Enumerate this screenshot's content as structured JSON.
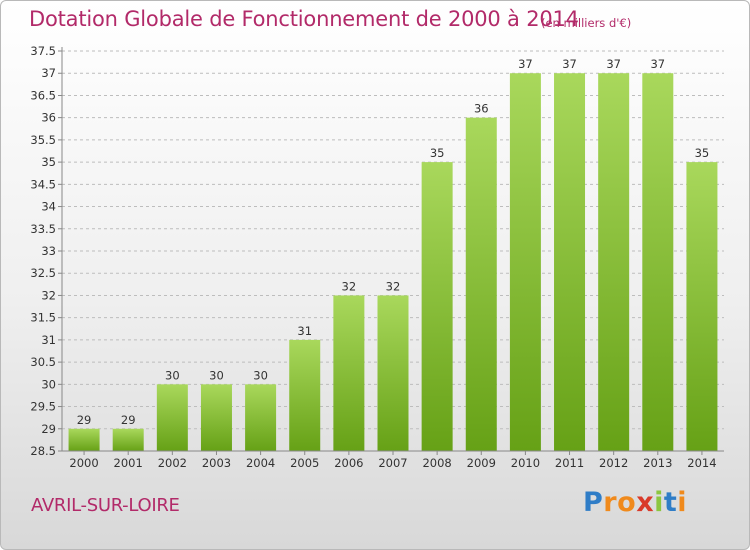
{
  "title": "Dotation Globale de Fonctionnement de 2000 à 2014",
  "subtitle": "(en milliers d'€)",
  "commune": "AVRIL-SUR-LOIRE",
  "logo": {
    "letters": [
      "P",
      "r",
      "o",
      "x",
      "i",
      "t",
      "i"
    ],
    "colors": [
      "#2f7dc7",
      "#f08a1c",
      "#f08a1c",
      "#d93a2a",
      "#8cc63f",
      "#2f7dc7",
      "#f08a1c"
    ]
  },
  "colors": {
    "bar_light": "#a9d85c",
    "bar_dark": "#66a116",
    "grid": "#bdbdbd",
    "axis": "#888888",
    "text": "#333333"
  },
  "chart_data": {
    "type": "bar",
    "categories": [
      "2000",
      "2001",
      "2002",
      "2003",
      "2004",
      "2005",
      "2006",
      "2007",
      "2008",
      "2009",
      "2010",
      "2011",
      "2012",
      "2013",
      "2014"
    ],
    "values": [
      29,
      29,
      30,
      30,
      30,
      31,
      32,
      32,
      35,
      36,
      37,
      37,
      37,
      37,
      35
    ],
    "yticks": [
      "28.5",
      "29",
      "29.5",
      "30",
      "30.5",
      "31",
      "31.5",
      "32",
      "32.5",
      "33",
      "33.5",
      "34",
      "34.5",
      "35",
      "35.5",
      "36",
      "36.5",
      "37",
      "37.5"
    ],
    "ylim": [
      28.5,
      37.5
    ],
    "grid": true,
    "legend": "none"
  }
}
